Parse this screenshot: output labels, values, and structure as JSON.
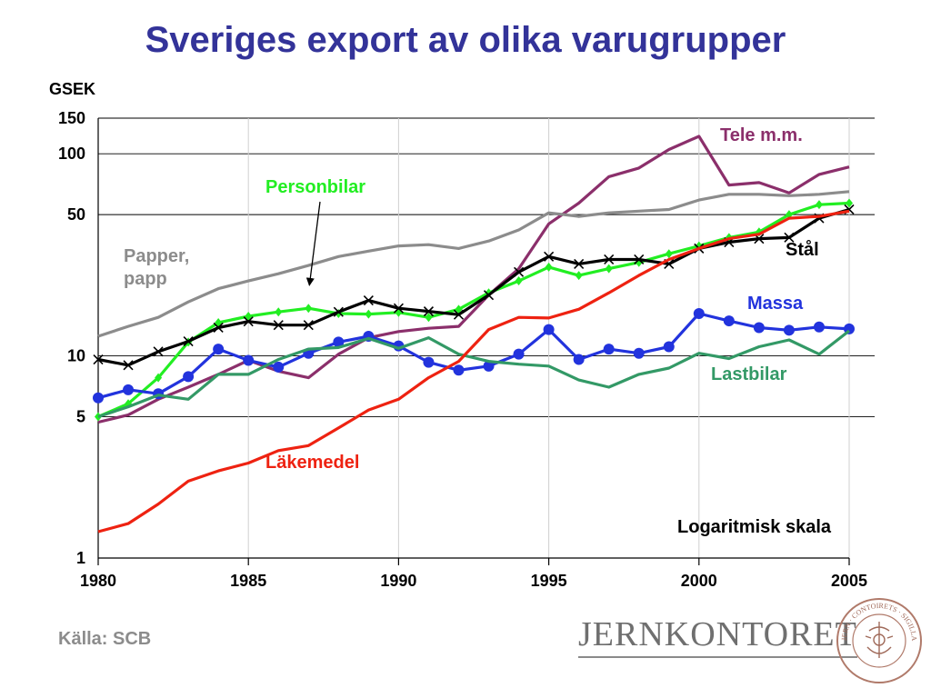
{
  "title": "Sveriges export av olika varugrupper",
  "source": "Källa: SCB",
  "logo": {
    "text": "JERNKONTORET",
    "seal_text": "JERN · CONTOIRETS · SIGILLA"
  },
  "chart_data": {
    "type": "line",
    "ylabel": "GSEK",
    "yscale": "log",
    "ylim": [
      1,
      150
    ],
    "xlim": [
      1980,
      2005
    ],
    "y_ticks": [
      1,
      5,
      10,
      50,
      100,
      150
    ],
    "y_tick_labels": [
      "1",
      "5",
      "10",
      "50",
      "100",
      "150"
    ],
    "x_ticks": [
      1980,
      1985,
      1990,
      1995,
      2000,
      2005
    ],
    "x_tick_labels": [
      "1980",
      "1985",
      "1990",
      "1995",
      "2000",
      "2005"
    ],
    "grid": "horizontal at 5, 10, 50, 100, 150; vertical at each x tick",
    "annotation": "Logaritmisk skala",
    "x": [
      1980,
      1981,
      1982,
      1983,
      1984,
      1985,
      1986,
      1987,
      1988,
      1989,
      1990,
      1991,
      1992,
      1993,
      1994,
      1995,
      1996,
      1997,
      1998,
      1999,
      2000,
      2001,
      2002,
      2003,
      2004,
      2005
    ],
    "series": [
      {
        "name": "Tele m.m.",
        "color": "#8b2f6b",
        "marker": "none",
        "label_pos": "right",
        "values": [
          4.7,
          5.1,
          6.1,
          7.0,
          8.1,
          9.5,
          8.4,
          7.8,
          10.2,
          12.3,
          13.2,
          13.7,
          14.0,
          20.0,
          27.0,
          45.0,
          57.0,
          77.0,
          85.0,
          105.0,
          122.0,
          70.0,
          72.0,
          64.0,
          79.0,
          86.0
        ]
      },
      {
        "name": "Papper, papp",
        "color": "#8c8c8c",
        "marker": "none",
        "label_pos": "left",
        "values": [
          12.5,
          14.0,
          15.5,
          18.5,
          21.5,
          23.5,
          25.5,
          28.0,
          31.0,
          33.0,
          35.0,
          35.5,
          34.0,
          37.0,
          42.0,
          51.0,
          49.0,
          51.0,
          52.0,
          53.0,
          59.0,
          63.0,
          63.0,
          62.0,
          63.0,
          65.0
        ]
      },
      {
        "name": "Personbilar",
        "color": "#22ee22",
        "marker": "diamond",
        "label_pos": "callout",
        "values": [
          5.0,
          5.8,
          7.8,
          11.7,
          14.6,
          15.7,
          16.5,
          17.2,
          16.2,
          16.1,
          16.4,
          15.5,
          17.0,
          20.5,
          23.5,
          27.5,
          25.0,
          27.0,
          29.0,
          32.0,
          35.0,
          38.5,
          41.0,
          50.0,
          56.0,
          57.0
        ]
      },
      {
        "name": "Stål",
        "color": "#000000",
        "marker": "x",
        "label_pos": "right",
        "values": [
          9.6,
          9.0,
          10.5,
          11.8,
          13.8,
          14.8,
          14.2,
          14.2,
          16.5,
          18.8,
          17.2,
          16.6,
          16.0,
          20.0,
          26.0,
          31.0,
          28.5,
          30.0,
          30.0,
          28.5,
          34.0,
          36.5,
          38.0,
          38.5,
          48.0,
          53.0
        ]
      },
      {
        "name": "Massa",
        "color": "#2233dd",
        "marker": "circle",
        "label_pos": "right",
        "values": [
          6.2,
          6.8,
          6.5,
          7.9,
          10.8,
          9.5,
          8.8,
          10.3,
          11.7,
          12.5,
          11.2,
          9.3,
          8.5,
          8.9,
          10.2,
          13.5,
          9.6,
          10.8,
          10.3,
          11.1,
          16.2,
          14.9,
          13.8,
          13.4,
          13.9,
          13.6
        ]
      },
      {
        "name": "Lastbilar",
        "color": "#339966",
        "marker": "none",
        "label_pos": "right",
        "values": [
          5.0,
          5.6,
          6.4,
          6.1,
          8.1,
          8.1,
          9.6,
          10.8,
          11.0,
          12.2,
          10.9,
          12.3,
          10.2,
          9.4,
          9.1,
          8.9,
          7.6,
          7.0,
          8.1,
          8.7,
          10.3,
          9.7,
          11.1,
          12.0,
          10.2,
          13.3
        ]
      },
      {
        "name": "Läkemedel",
        "color": "#ee2211",
        "marker": "none",
        "label_pos": "left",
        "values": [
          1.35,
          1.48,
          1.85,
          2.4,
          2.7,
          2.95,
          3.4,
          3.6,
          4.4,
          5.4,
          6.1,
          7.8,
          9.4,
          13.5,
          15.5,
          15.4,
          17.0,
          20.5,
          25.0,
          30.0,
          34.0,
          38.0,
          40.0,
          48.0,
          49.0,
          52.0
        ]
      }
    ]
  }
}
